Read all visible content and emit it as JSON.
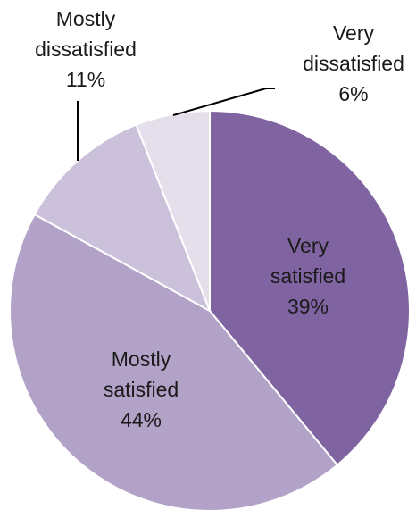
{
  "chart_data": {
    "type": "pie",
    "title": "",
    "slices": [
      {
        "label_lines": [
          "Very",
          "satisfied"
        ],
        "value": 39,
        "value_label": "39%",
        "color": "#8064a2"
      },
      {
        "label_lines": [
          "Mostly",
          "satisfied"
        ],
        "value": 44,
        "value_label": "44%",
        "color": "#b2a2c7"
      },
      {
        "label_lines": [
          "Mostly",
          "dissatisfied"
        ],
        "value": 11,
        "value_label": "11%",
        "color": "#ccc1da"
      },
      {
        "label_lines": [
          "Very",
          "dissatisfied"
        ],
        "value": 6,
        "value_label": "6%",
        "color": "#e5dfec"
      }
    ],
    "legend": "none",
    "leader_line_color": "#000000"
  }
}
